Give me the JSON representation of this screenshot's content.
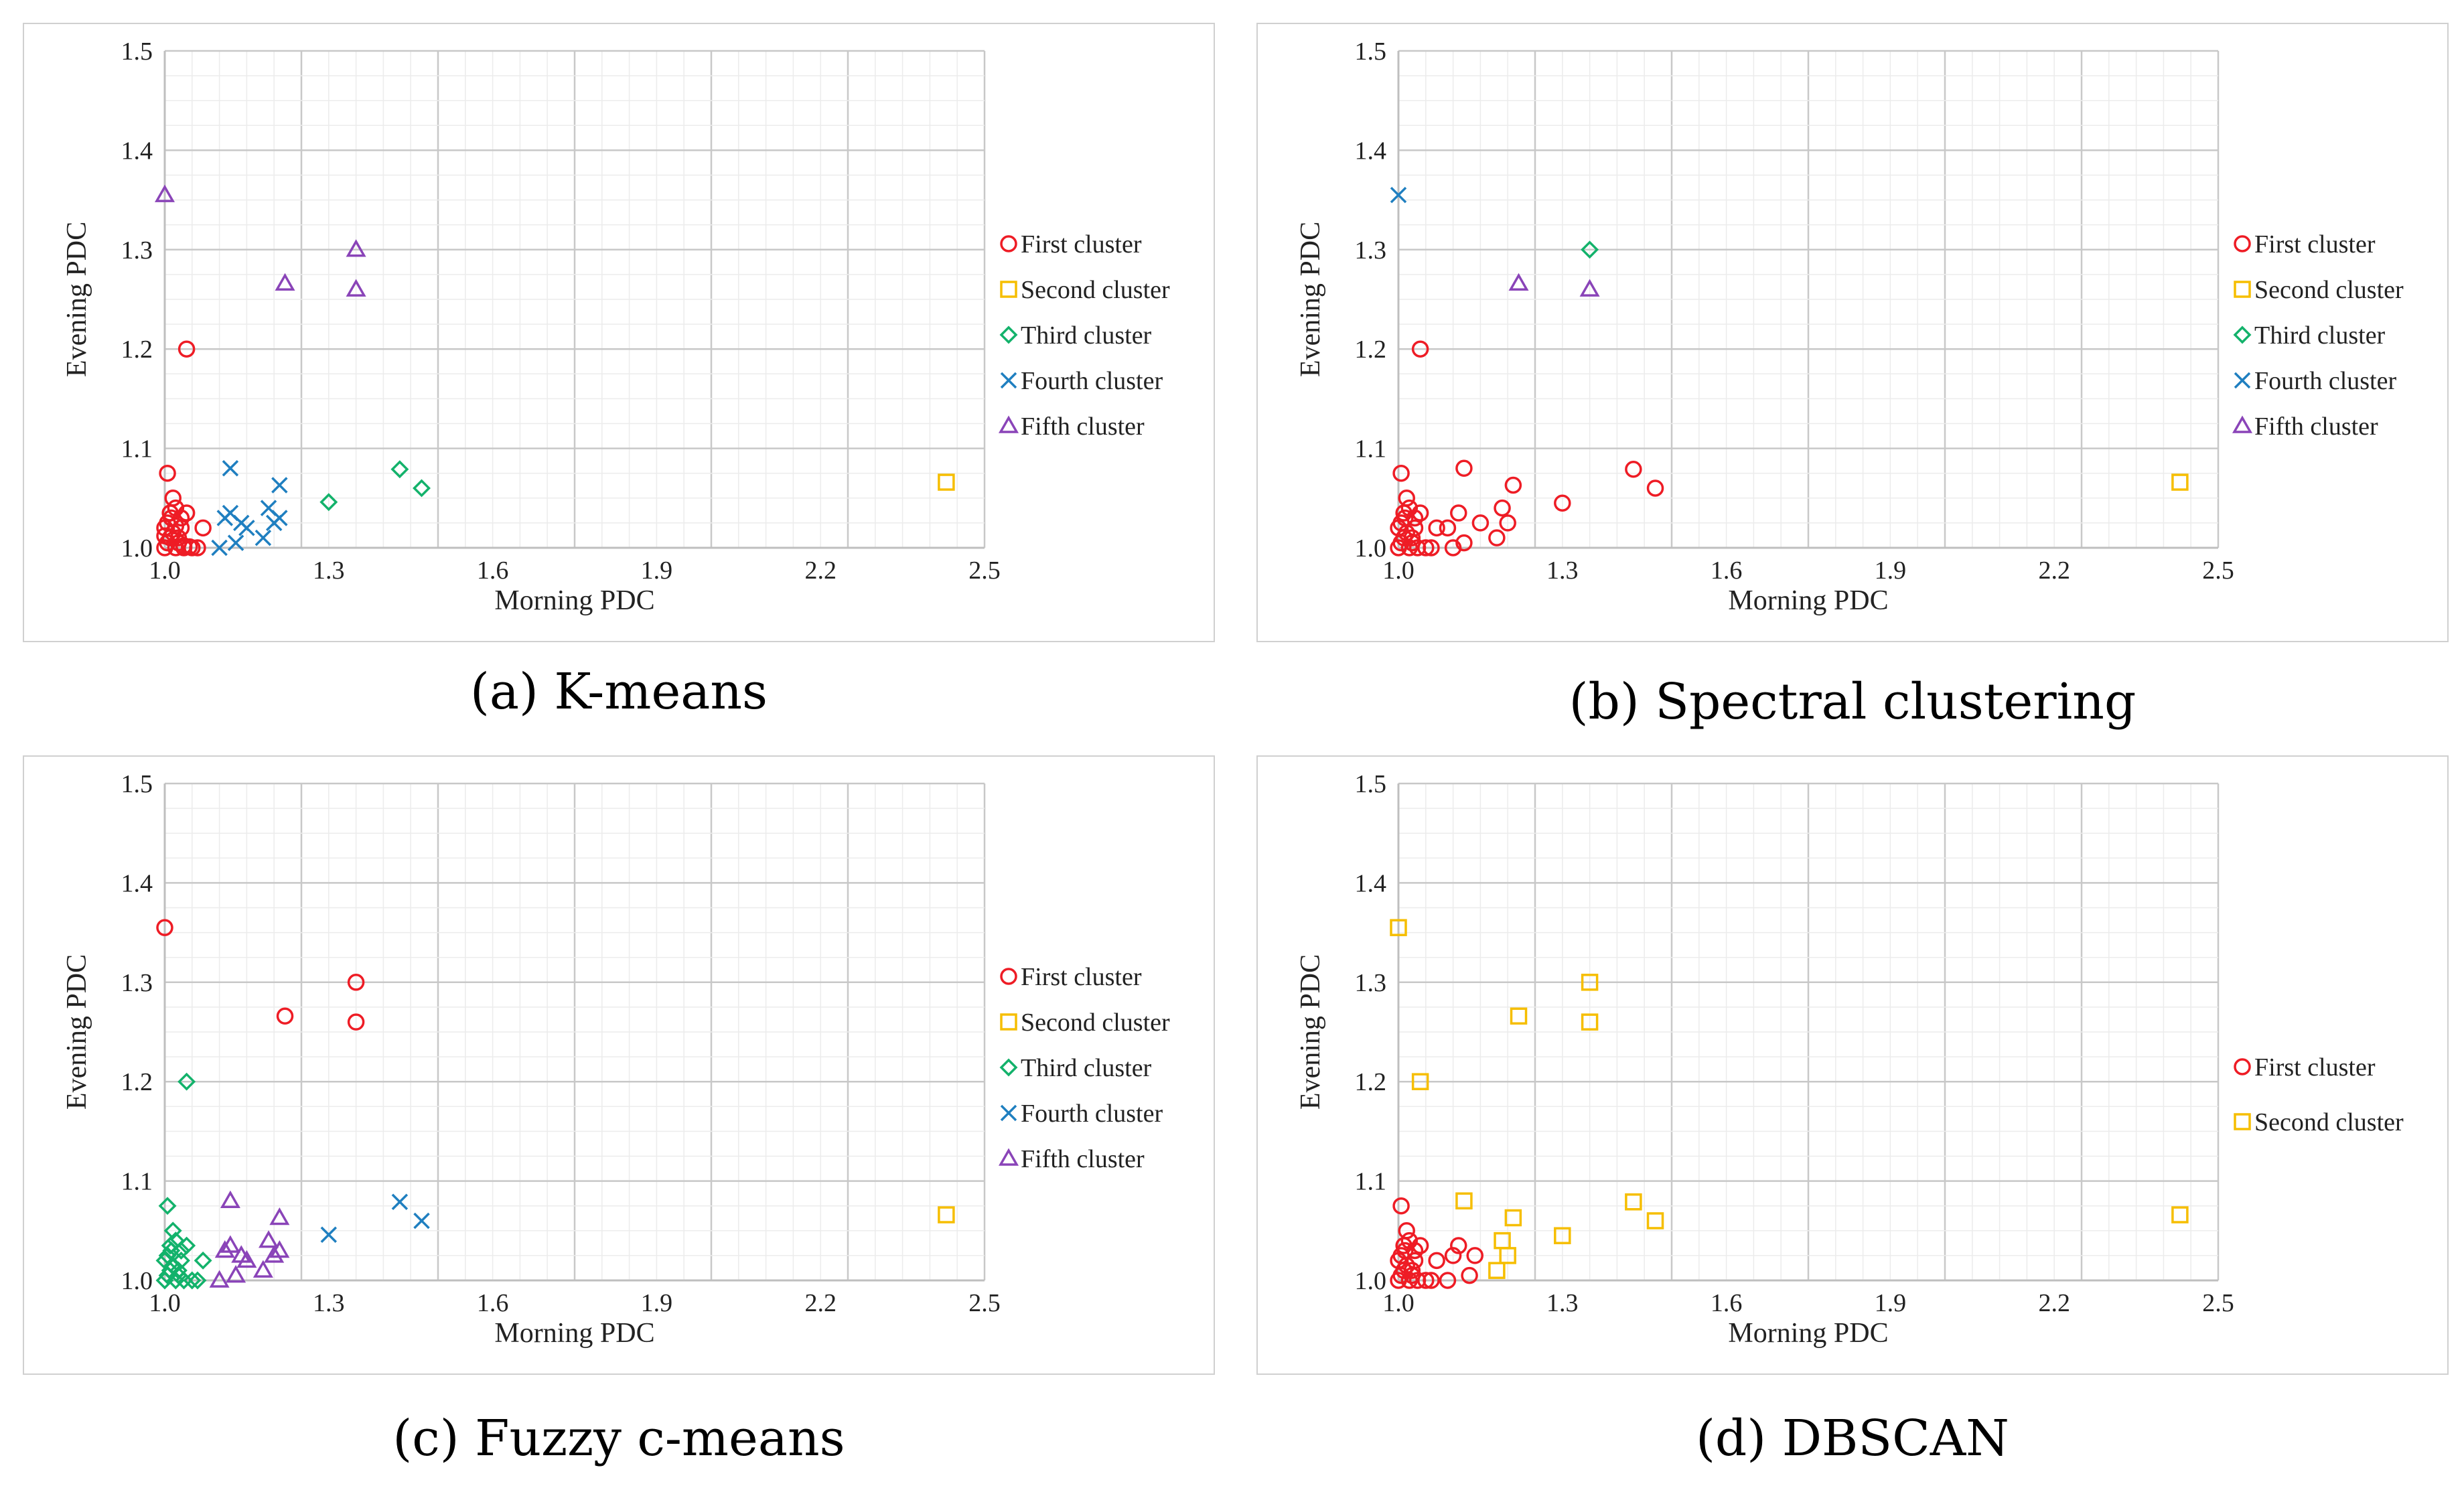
{
  "colors": {
    "c1": "#ee1c25",
    "c2": "#f6be00",
    "c3": "#13b26b",
    "c4": "#1f7fc0",
    "c5": "#8a44b8",
    "grid": "#d9d9d9",
    "frame": "#d0d0d0"
  },
  "chart_data": [
    {
      "type": "scatter",
      "caption": "(a) K-means",
      "xlabel": "Morning PDC",
      "ylabel": "Evening PDC",
      "xlim": [
        1.0,
        2.5
      ],
      "ylim": [
        1.0,
        1.5
      ],
      "x_ticks": [
        "1.0",
        "1.3",
        "1.6",
        "1.9",
        "2.2",
        "2.5"
      ],
      "y_ticks": [
        "1.0",
        "1.1",
        "1.2",
        "1.3",
        "1.4",
        "1.5"
      ],
      "legend_position": "right",
      "series": [
        {
          "name": "First cluster",
          "marker": "circle",
          "color_key": "c1",
          "x": [
            1.0,
            1.005,
            1.01,
            1.0,
            1.012,
            1.02,
            1.025,
            1.035,
            1.015,
            1.005,
            1.01,
            1.02,
            1.03,
            1.04,
            1.05,
            1.06,
            1.005,
            1.015,
            1.025,
            1.03,
            1.0,
            1.02,
            1.035,
            1.045,
            1.07,
            1.04
          ],
          "y": [
            1.0,
            1.005,
            1.01,
            1.02,
            1.03,
            1.0,
            1.01,
            1.0,
            1.05,
            1.075,
            1.035,
            1.04,
            1.02,
            1.035,
            1.0,
            1.0,
            1.025,
            1.015,
            1.005,
            1.03,
            1.012,
            1.022,
            1.002,
            1.001,
            1.02,
            1.2
          ]
        },
        {
          "name": "Second cluster",
          "marker": "square",
          "color_key": "c2",
          "x": [
            2.43
          ],
          "y": [
            1.066
          ]
        },
        {
          "name": "Third cluster",
          "marker": "diamond",
          "color_key": "c3",
          "x": [
            1.3,
            1.43,
            1.47
          ],
          "y": [
            1.046,
            1.079,
            1.06
          ]
        },
        {
          "name": "Fourth cluster",
          "marker": "x",
          "color_key": "c4",
          "x": [
            1.12,
            1.21,
            1.19,
            1.2,
            1.11,
            1.12,
            1.15,
            1.18,
            1.1,
            1.13,
            1.21,
            1.14
          ],
          "y": [
            1.08,
            1.063,
            1.04,
            1.025,
            1.03,
            1.035,
            1.02,
            1.01,
            1.0,
            1.005,
            1.03,
            1.025
          ]
        },
        {
          "name": "Fifth cluster",
          "marker": "triangle",
          "color_key": "c5",
          "x": [
            1.0,
            1.35,
            1.35,
            1.22
          ],
          "y": [
            1.355,
            1.3,
            1.26,
            1.266
          ]
        }
      ]
    },
    {
      "type": "scatter",
      "caption": "(b) Spectral clustering",
      "xlabel": "Morning PDC",
      "ylabel": "Evening PDC",
      "xlim": [
        1.0,
        2.5
      ],
      "ylim": [
        1.0,
        1.5
      ],
      "x_ticks": [
        "1.0",
        "1.3",
        "1.6",
        "1.9",
        "2.2",
        "2.5"
      ],
      "y_ticks": [
        "1.0",
        "1.1",
        "1.2",
        "1.3",
        "1.4",
        "1.5"
      ],
      "legend_position": "right",
      "series": [
        {
          "name": "First cluster",
          "marker": "circle",
          "color_key": "c1",
          "x": [
            1.0,
            1.005,
            1.01,
            1.0,
            1.012,
            1.02,
            1.025,
            1.035,
            1.015,
            1.005,
            1.01,
            1.02,
            1.03,
            1.04,
            1.05,
            1.06,
            1.005,
            1.015,
            1.025,
            1.03,
            1.07,
            1.04,
            1.12,
            1.21,
            1.19,
            1.2,
            1.11,
            1.12,
            1.15,
            1.18,
            1.1,
            1.09,
            1.3,
            1.43,
            1.47
          ],
          "y": [
            1.0,
            1.005,
            1.01,
            1.02,
            1.03,
            1.0,
            1.01,
            1.0,
            1.05,
            1.075,
            1.035,
            1.04,
            1.02,
            1.035,
            1.0,
            1.0,
            1.025,
            1.015,
            1.005,
            1.03,
            1.02,
            1.2,
            1.08,
            1.063,
            1.04,
            1.025,
            1.035,
            1.005,
            1.025,
            1.01,
            1.0,
            1.02,
            1.045,
            1.079,
            1.06
          ]
        },
        {
          "name": "Second cluster",
          "marker": "square",
          "color_key": "c2",
          "x": [
            2.43
          ],
          "y": [
            1.066
          ]
        },
        {
          "name": "Third cluster",
          "marker": "diamond",
          "color_key": "c3",
          "x": [
            1.35
          ],
          "y": [
            1.3
          ]
        },
        {
          "name": "Fourth cluster",
          "marker": "x",
          "color_key": "c4",
          "x": [
            1.0
          ],
          "y": [
            1.355
          ]
        },
        {
          "name": "Fifth cluster",
          "marker": "triangle",
          "color_key": "c5",
          "x": [
            1.22,
            1.35
          ],
          "y": [
            1.266,
            1.26
          ]
        }
      ]
    },
    {
      "type": "scatter",
      "caption": "(c) Fuzzy c-means",
      "xlabel": "Morning PDC",
      "ylabel": "Evening PDC",
      "xlim": [
        1.0,
        2.5
      ],
      "ylim": [
        1.0,
        1.5
      ],
      "x_ticks": [
        "1.0",
        "1.3",
        "1.6",
        "1.9",
        "2.2",
        "2.5"
      ],
      "y_ticks": [
        "1.0",
        "1.1",
        "1.2",
        "1.3",
        "1.4",
        "1.5"
      ],
      "legend_position": "right",
      "series": [
        {
          "name": "First cluster",
          "marker": "circle",
          "color_key": "c1",
          "x": [
            1.0,
            1.35,
            1.35,
            1.22
          ],
          "y": [
            1.355,
            1.3,
            1.26,
            1.266
          ]
        },
        {
          "name": "Second cluster",
          "marker": "square",
          "color_key": "c2",
          "x": [
            2.43
          ],
          "y": [
            1.066
          ]
        },
        {
          "name": "Third cluster",
          "marker": "diamond",
          "color_key": "c3",
          "x": [
            1.0,
            1.005,
            1.01,
            1.0,
            1.012,
            1.02,
            1.025,
            1.035,
            1.015,
            1.005,
            1.01,
            1.02,
            1.03,
            1.04,
            1.05,
            1.06,
            1.005,
            1.015,
            1.025,
            1.03,
            1.07,
            1.04
          ],
          "y": [
            1.0,
            1.005,
            1.01,
            1.02,
            1.03,
            1.0,
            1.01,
            1.0,
            1.05,
            1.075,
            1.035,
            1.04,
            1.02,
            1.035,
            1.0,
            1.0,
            1.025,
            1.015,
            1.005,
            1.03,
            1.02,
            1.2
          ]
        },
        {
          "name": "Fourth cluster",
          "marker": "x",
          "color_key": "c4",
          "x": [
            1.3,
            1.43,
            1.47
          ],
          "y": [
            1.046,
            1.079,
            1.06
          ]
        },
        {
          "name": "Fifth cluster",
          "marker": "triangle",
          "color_key": "c5",
          "x": [
            1.12,
            1.21,
            1.19,
            1.2,
            1.11,
            1.12,
            1.15,
            1.18,
            1.1,
            1.13,
            1.21,
            1.14
          ],
          "y": [
            1.08,
            1.063,
            1.04,
            1.025,
            1.03,
            1.035,
            1.02,
            1.01,
            1.0,
            1.005,
            1.03,
            1.025
          ]
        }
      ]
    },
    {
      "type": "scatter",
      "caption": "(d) DBSCAN",
      "xlabel": "Morning PDC",
      "ylabel": "Evening PDC",
      "xlim": [
        1.0,
        2.5
      ],
      "ylim": [
        1.0,
        1.5
      ],
      "x_ticks": [
        "1.0",
        "1.3",
        "1.6",
        "1.9",
        "2.2",
        "2.5"
      ],
      "y_ticks": [
        "1.0",
        "1.1",
        "1.2",
        "1.3",
        "1.4",
        "1.5"
      ],
      "legend_position": "right",
      "series": [
        {
          "name": "First cluster",
          "marker": "circle",
          "color_key": "c1",
          "x": [
            1.0,
            1.005,
            1.01,
            1.0,
            1.012,
            1.02,
            1.025,
            1.035,
            1.015,
            1.005,
            1.01,
            1.02,
            1.03,
            1.04,
            1.05,
            1.06,
            1.005,
            1.015,
            1.025,
            1.03,
            1.07,
            1.09,
            1.1,
            1.11,
            1.13,
            1.14
          ],
          "y": [
            1.0,
            1.005,
            1.01,
            1.02,
            1.03,
            1.0,
            1.01,
            1.0,
            1.05,
            1.075,
            1.035,
            1.04,
            1.02,
            1.035,
            1.0,
            1.0,
            1.025,
            1.015,
            1.005,
            1.03,
            1.02,
            1.0,
            1.025,
            1.035,
            1.005,
            1.025
          ]
        },
        {
          "name": "Second cluster",
          "marker": "square",
          "color_key": "c2",
          "x": [
            1.0,
            1.35,
            1.35,
            1.22,
            1.04,
            1.12,
            1.21,
            1.19,
            1.2,
            1.18,
            1.3,
            1.43,
            1.47,
            2.43
          ],
          "y": [
            1.355,
            1.3,
            1.26,
            1.266,
            1.2,
            1.08,
            1.063,
            1.04,
            1.025,
            1.01,
            1.045,
            1.079,
            1.06,
            1.066
          ]
        }
      ]
    }
  ]
}
